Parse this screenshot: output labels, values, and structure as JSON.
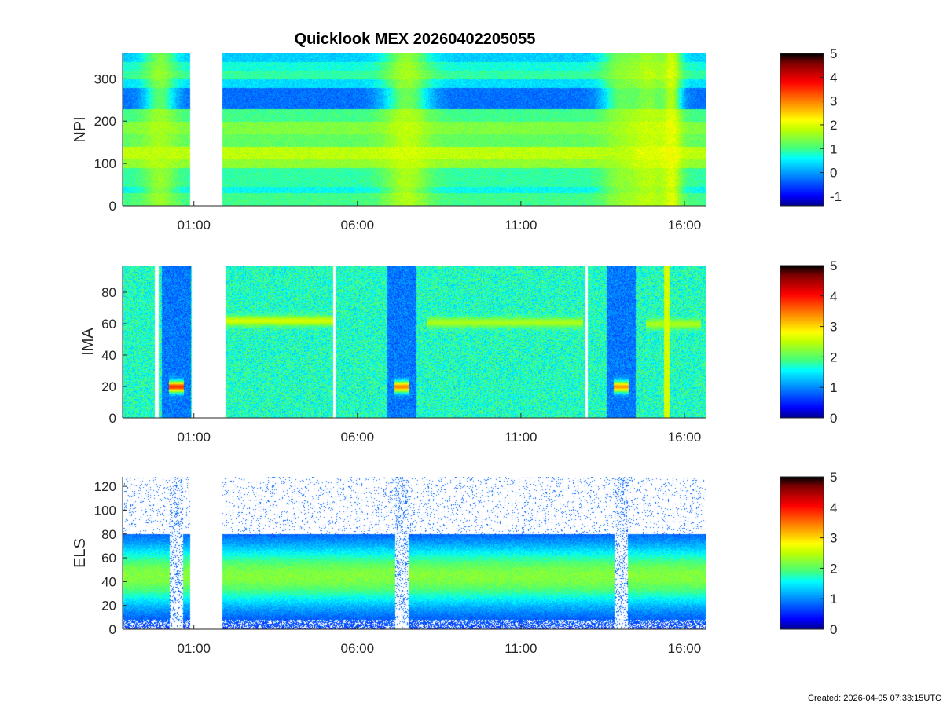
{
  "figure": {
    "title": "Quicklook MEX 20260402205055",
    "footer": "Created: 2026-04-05 07:33:15UTC"
  },
  "colors": {
    "colormap": [
      "#000090",
      "#0000ff",
      "#0040ff",
      "#0080ff",
      "#00bfff",
      "#00ffff",
      "#40ff80",
      "#80ff40",
      "#bfff00",
      "#ffff00",
      "#ffbf00",
      "#ff8000",
      "#ff4000",
      "#ff0000",
      "#c00000",
      "#800000",
      "#000000"
    ],
    "axis": "#262626",
    "gap": "#ffffff"
  },
  "chart_data": [
    {
      "type": "heatmap",
      "id": "npi",
      "ylabel": "NPI",
      "ylim": [
        0,
        360
      ],
      "yticks": [
        0,
        100,
        200,
        300
      ],
      "x_tick_labels": [
        "01:00",
        "06:00",
        "11:00",
        "16:00"
      ],
      "x_tick_hours": [
        1,
        6,
        11,
        16
      ],
      "xlim_hours": [
        -1.18,
        16.65
      ],
      "data_gaps_hours": [
        [
          0.88,
          1.85
        ]
      ],
      "colorbar": {
        "range": [
          -1.4,
          5
        ],
        "ticks": [
          -1,
          0,
          1,
          2,
          3,
          4,
          5
        ]
      },
      "channel_bands": [
        {
          "y": [
            0,
            30
          ],
          "level": 1.0
        },
        {
          "y": [
            30,
            45
          ],
          "level": 0.6
        },
        {
          "y": [
            45,
            90
          ],
          "level": 0.9
        },
        {
          "y": [
            90,
            110
          ],
          "level": 1.5
        },
        {
          "y": [
            110,
            140
          ],
          "level": 1.8
        },
        {
          "y": [
            140,
            170
          ],
          "level": 1.2
        },
        {
          "y": [
            170,
            200
          ],
          "level": 1.4
        },
        {
          "y": [
            200,
            230
          ],
          "level": 1.0
        },
        {
          "y": [
            230,
            280
          ],
          "level": -0.3
        },
        {
          "y": [
            280,
            300
          ],
          "level": 0.4
        },
        {
          "y": [
            300,
            320
          ],
          "level": 0.9
        },
        {
          "y": [
            320,
            340
          ],
          "level": 0.7
        },
        {
          "y": [
            340,
            360
          ],
          "level": 0.3
        }
      ],
      "enhancements": [
        {
          "hour": -0.05,
          "width": 0.35,
          "level": 1.8
        },
        {
          "hour": 7.5,
          "width": 0.5,
          "level": 2.0
        },
        {
          "hour": 14.0,
          "width": 0.4,
          "level": 1.6
        },
        {
          "hour": 14.9,
          "width": 0.5,
          "level": 2.1
        },
        {
          "hour": 15.6,
          "width": 0.2,
          "level": 2.3
        }
      ]
    },
    {
      "type": "heatmap",
      "id": "ima",
      "ylabel": "IMA",
      "ylim": [
        0,
        97
      ],
      "yticks": [
        0,
        20,
        40,
        60,
        80
      ],
      "x_tick_labels": [
        "01:00",
        "06:00",
        "11:00",
        "16:00"
      ],
      "x_tick_hours": [
        1,
        6,
        11,
        16
      ],
      "xlim_hours": [
        -1.18,
        16.65
      ],
      "data_gaps_hours": [
        [
          -0.2,
          -0.08
        ],
        [
          0.92,
          1.95
        ],
        [
          5.25,
          5.33
        ],
        [
          12.95,
          13.03
        ]
      ],
      "colorbar": {
        "range": [
          0,
          5
        ],
        "ticks": [
          0,
          1,
          2,
          3,
          4,
          5
        ]
      },
      "background_level": 1.7,
      "bands": [
        {
          "hours": [
            1.95,
            5.25
          ],
          "y": 62,
          "level": 2.6
        },
        {
          "hours": [
            8.1,
            12.9
          ],
          "y": 61,
          "level": 2.4
        },
        {
          "hours": [
            14.8,
            16.5
          ],
          "y": 60,
          "level": 2.4
        }
      ],
      "pericenter_dips": [
        {
          "hours": [
            0.0,
            0.9
          ],
          "y": 20,
          "level": 3.8
        },
        {
          "hours": [
            6.9,
            7.8
          ],
          "y": 20,
          "level": 3.4
        },
        {
          "hours": [
            13.6,
            14.5
          ],
          "y": 20,
          "level": 3.3
        }
      ],
      "spike_hours": [
        15.45
      ]
    },
    {
      "type": "heatmap",
      "id": "els",
      "ylabel": "ELS",
      "ylim": [
        0,
        128
      ],
      "yticks": [
        0,
        20,
        40,
        60,
        80,
        100,
        120
      ],
      "x_tick_labels": [
        "01:00",
        "06:00",
        "11:00",
        "16:00"
      ],
      "x_tick_hours": [
        1,
        6,
        11,
        16
      ],
      "xlim_hours": [
        -1.18,
        16.65
      ],
      "data_gaps_hours": [
        [
          0.88,
          1.85
        ]
      ],
      "colorbar": {
        "range": [
          0,
          5
        ],
        "ticks": [
          0,
          1,
          2,
          3,
          4,
          5
        ]
      },
      "band": {
        "y_center": 45,
        "y_half_width": 35,
        "level": 2.2
      },
      "pericenter_dips": [
        {
          "hours": [
            0.0,
            0.9
          ]
        },
        {
          "hours": [
            6.9,
            7.8
          ]
        },
        {
          "hours": [
            13.6,
            14.5
          ]
        }
      ]
    }
  ]
}
